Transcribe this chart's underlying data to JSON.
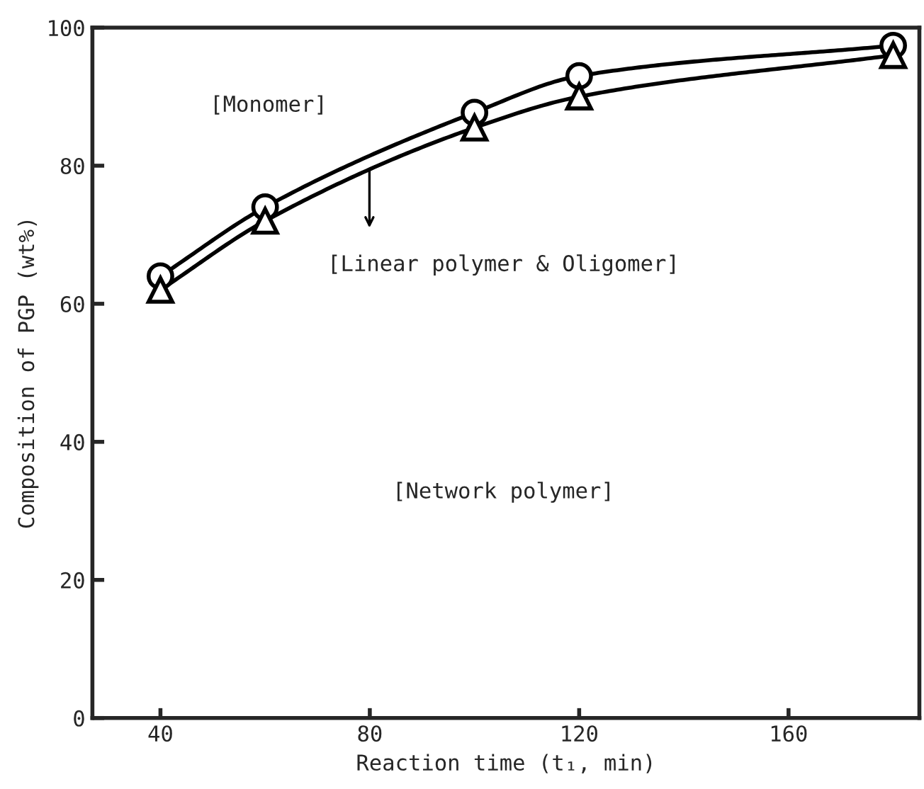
{
  "chart_data": {
    "type": "line",
    "xlabel": "Reaction time (t₁, min)",
    "ylabel": "Composition of PGP (wt%)",
    "x": [
      40,
      60,
      100,
      120,
      180
    ],
    "series": [
      {
        "color": "#000000",
        "marker": "circle",
        "values": [
          64,
          74,
          87.7,
          93,
          97.4
        ]
      },
      {
        "color": "#000000",
        "marker": "triangle",
        "values": [
          62,
          72,
          85.5,
          90,
          96
        ]
      }
    ],
    "xlim": [
      27,
      185
    ],
    "xticks": [
      40,
      80,
      120,
      160
    ],
    "ylim": [
      0,
      100
    ],
    "yticks": [
      0,
      20,
      40,
      60,
      80,
      100
    ],
    "grid": false,
    "legend": false,
    "line_style": "solid",
    "annotations": [
      "[Monomer]",
      "[Linear polymer & Oligomer]",
      "[Network polymer]"
    ]
  }
}
